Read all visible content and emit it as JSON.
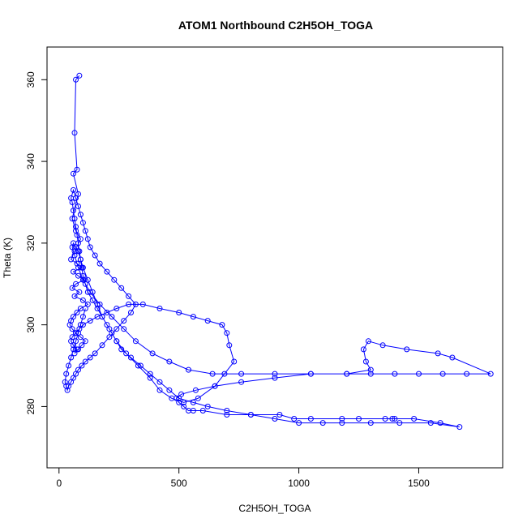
{
  "chart_data": {
    "type": "scatter",
    "title": "ATOM1 Northbound C2H5OH_TOGA",
    "xlabel": "C2H5OH_TOGA",
    "ylabel": "Theta (K)",
    "xlim": [
      -50,
      1850
    ],
    "ylim": [
      265,
      368
    ],
    "xticks": [
      0,
      500,
      1000,
      1500
    ],
    "yticks": [
      280,
      300,
      320,
      340,
      360
    ],
    "grid": false,
    "legend": "none",
    "mode": "line+markers",
    "color": "#0000ff",
    "series": [
      {
        "x": [
          85,
          70,
          65,
          75,
          60,
          80,
          55,
          70,
          90,
          65,
          50,
          75,
          95,
          60,
          80,
          105,
          70,
          55,
          85,
          65,
          100,
          120,
          90,
          75,
          60,
          50,
          45,
          55,
          70,
          90,
          110,
          95,
          80,
          65,
          75,
          60,
          50,
          55,
          70,
          85,
          100,
          130,
          160,
          200,
          240,
          290,
          350,
          420,
          500,
          560,
          620,
          680,
          700,
          710,
          730,
          690,
          650,
          580,
          520,
          470,
          420,
          380,
          330,
          280,
          240,
          210,
          180,
          160,
          140,
          120,
          100,
          90,
          80,
          70,
          60,
          55,
          65,
          80,
          100,
          130,
          170,
          220,
          270,
          320,
          390,
          460,
          540,
          640,
          760,
          900,
          1050,
          1200,
          1300,
          1280,
          1270,
          1290,
          1350,
          1450,
          1580,
          1640,
          1800,
          1700,
          1600,
          1500,
          1400,
          1300,
          1200,
          1050,
          900,
          760,
          650,
          570,
          510,
          490,
          500,
          520,
          540,
          560,
          600,
          700,
          800,
          920,
          980,
          1050,
          1180,
          1250,
          1360,
          1390,
          1400,
          1480,
          1590,
          1670,
          1550,
          1420,
          1300,
          1180,
          1100,
          1000,
          900,
          800,
          700,
          620,
          560,
          500,
          460,
          420,
          380,
          340,
          300,
          260,
          240,
          220,
          200,
          180,
          160,
          140,
          120,
          110,
          100,
          95,
          90,
          85,
          80,
          75,
          70,
          65,
          60,
          55,
          50,
          60,
          70,
          80,
          90,
          100,
          110,
          120,
          130,
          150,
          170,
          200,
          230,
          260,
          290,
          320,
          300,
          270,
          240,
          210,
          180,
          150,
          130,
          110,
          95,
          80,
          70,
          60,
          50,
          40,
          35,
          30,
          25,
          30,
          40,
          50,
          60,
          70,
          80,
          90,
          100,
          110
        ],
        "y": [
          361,
          360,
          347,
          338,
          337,
          332,
          326,
          323,
          321,
          318,
          316,
          315,
          314,
          313,
          312,
          311,
          310,
          309,
          308,
          307,
          306,
          305,
          304,
          303,
          302,
          301,
          300,
          299,
          298,
          297,
          296,
          295,
          294,
          293,
          294,
          295,
          296,
          297,
          298,
          299,
          300,
          301,
          302,
          303,
          304,
          305,
          305,
          304,
          303,
          302,
          301,
          300,
          298,
          295,
          291,
          288,
          285,
          282,
          281,
          282,
          284,
          287,
          290,
          293,
          296,
          299,
          302,
          305,
          308,
          311,
          314,
          316,
          318,
          319,
          320,
          319,
          317,
          314,
          311,
          308,
          305,
          302,
          299,
          296,
          293,
          291,
          289,
          288,
          288,
          288,
          288,
          288,
          289,
          291,
          294,
          296,
          295,
          294,
          293,
          292,
          288,
          288,
          288,
          288,
          288,
          288,
          288,
          288,
          287,
          286,
          285,
          284,
          283,
          282,
          281,
          280,
          279,
          279,
          279,
          278,
          278,
          278,
          277,
          277,
          277,
          277,
          277,
          277,
          277,
          277,
          276,
          275,
          276,
          276,
          276,
          276,
          276,
          276,
          277,
          278,
          279,
          280,
          281,
          282,
          284,
          286,
          288,
          290,
          292,
          294,
          296,
          298,
          300,
          302,
          304,
          306,
          308,
          310,
          312,
          314,
          316,
          318,
          320,
          322,
          324,
          326,
          328,
          330,
          331,
          333,
          331,
          329,
          327,
          325,
          323,
          321,
          319,
          317,
          315,
          313,
          311,
          309,
          307,
          305,
          303,
          301,
          299,
          297,
          295,
          293,
          292,
          291,
          290,
          289,
          288,
          287,
          286,
          285,
          284,
          285,
          286,
          288,
          290,
          292,
          294,
          296,
          298,
          300,
          302,
          304
        ]
      }
    ]
  }
}
